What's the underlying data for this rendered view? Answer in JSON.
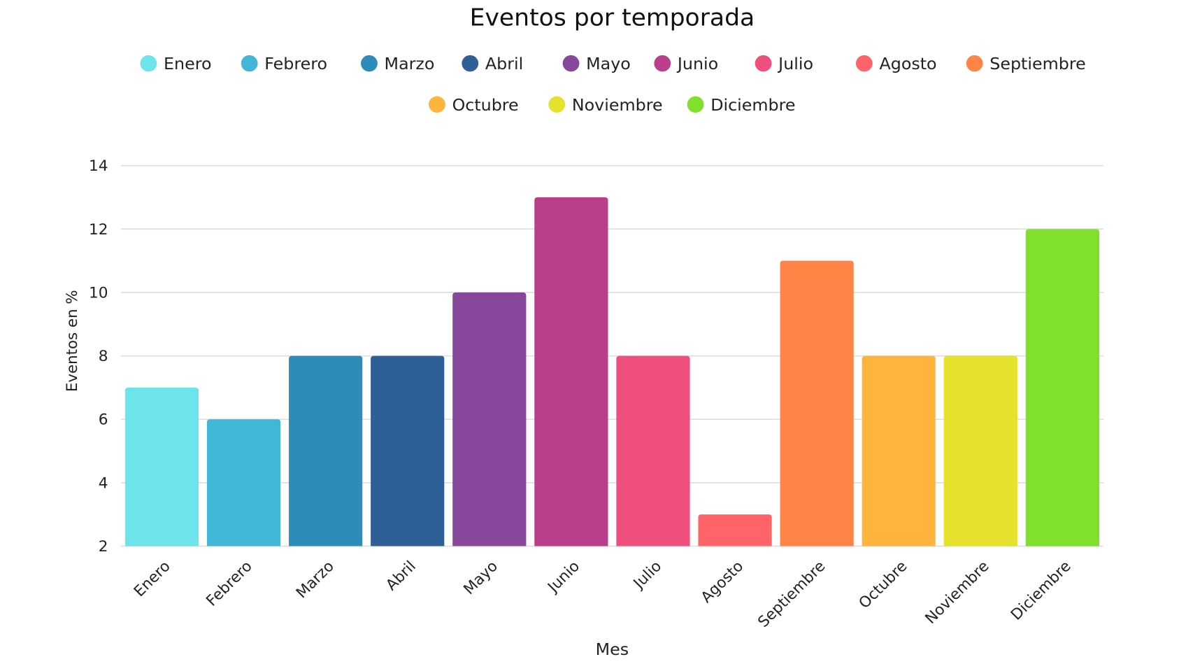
{
  "chart_data": {
    "type": "bar",
    "title": "Eventos por temporada",
    "xlabel": "Mes",
    "ylabel": "Eventos en %",
    "ylim": [
      2,
      14
    ],
    "yticks": [
      2,
      4,
      6,
      8,
      10,
      12,
      14
    ],
    "grid": true,
    "legend_position": "top-center",
    "categories": [
      "Enero",
      "Febrero",
      "Marzo",
      "Abril",
      "Mayo",
      "Junio",
      "Julio",
      "Agosto",
      "Septiembre",
      "Octubre",
      "Noviembre",
      "Diciembre"
    ],
    "values": [
      7,
      6,
      8,
      8,
      10,
      13,
      8,
      3,
      11,
      8,
      8,
      12
    ],
    "colors": [
      "#6de4e9",
      "#41b6d6",
      "#2e8cba",
      "#2e6097",
      "#87479a",
      "#bb3e8a",
      "#ef4f7d",
      "#ff6568",
      "#ff8547",
      "#ffb53d",
      "#e5e22c",
      "#80e02b"
    ]
  }
}
